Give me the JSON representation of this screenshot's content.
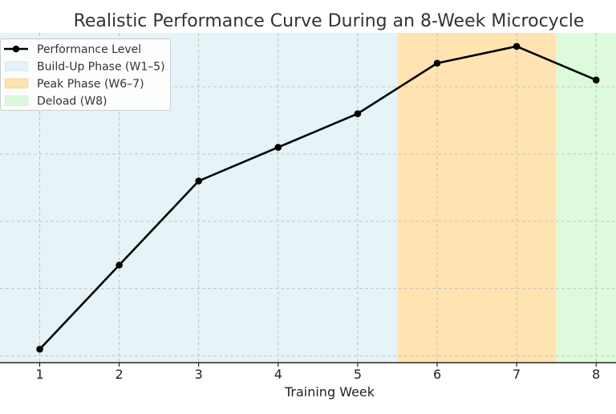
{
  "chart_data": {
    "type": "line",
    "title": "Realistic Performance Curve During an 8-Week Microcycle",
    "xlabel": "Training Week",
    "ylabel": "",
    "x": [
      1,
      2,
      3,
      4,
      5,
      6,
      7,
      8
    ],
    "xlim": [
      0.5,
      8.25
    ],
    "ylim": [
      54,
      103
    ],
    "grid": true,
    "legend_position": "top-left",
    "series": [
      {
        "name": "Performance Level",
        "values": [
          56,
          68.5,
          81,
          86,
          91,
          98.5,
          101,
          96
        ],
        "color": "#000000",
        "marker": "circle"
      }
    ],
    "phases": [
      {
        "label": "Build-Up Phase (W1–5)",
        "x_start": 0.5,
        "x_end": 5.5,
        "color": "#add8e6"
      },
      {
        "label": "Peak Phase (W6–7)",
        "x_start": 5.5,
        "x_end": 7.5,
        "color": "#ffa500"
      },
      {
        "label": "Deload (W8)",
        "x_start": 7.5,
        "x_end": 8.5,
        "color": "#90ee90"
      }
    ]
  }
}
